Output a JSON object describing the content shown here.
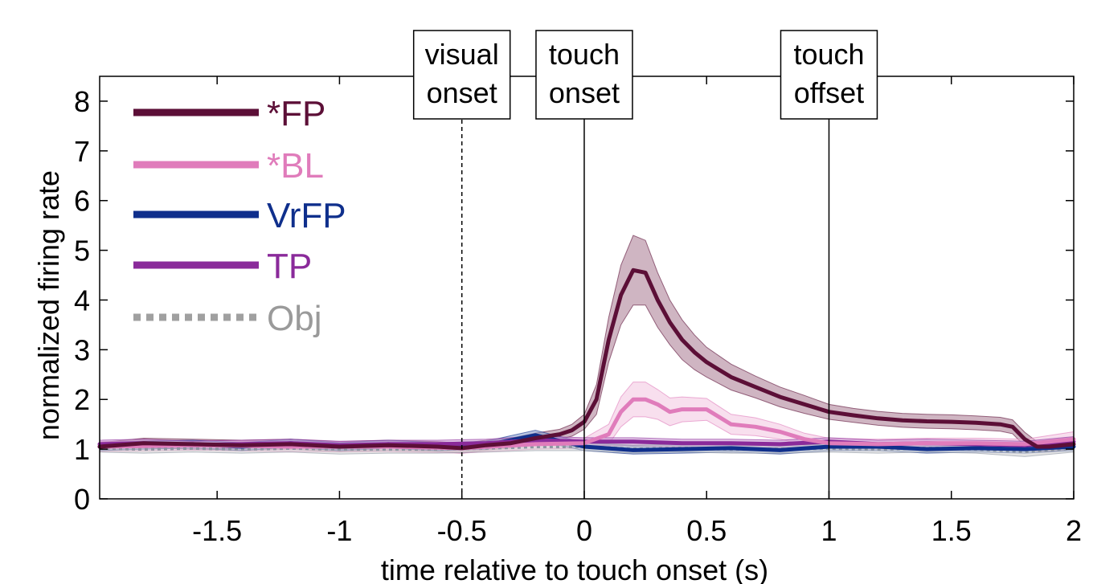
{
  "chart_data": {
    "type": "line",
    "xlabel": "time relative to touch onset (s)",
    "ylabel": "normalized firing rate",
    "xlim": [
      -1.98,
      2
    ],
    "ylim": [
      0,
      8.5
    ],
    "xticks": [
      -1.5,
      -1,
      -0.5,
      0,
      0.5,
      1,
      1.5,
      2
    ],
    "xtick_labels": [
      "-1.5",
      "-1",
      "-0.5",
      "0",
      "0.5",
      "1",
      "1.5",
      "2"
    ],
    "yticks": [
      0,
      1,
      2,
      3,
      4,
      5,
      6,
      7,
      8
    ],
    "ytick_labels": [
      "0",
      "1",
      "2",
      "3",
      "4",
      "5",
      "6",
      "7",
      "8"
    ],
    "grid": false,
    "legend_position": "top-left",
    "event_markers": [
      {
        "x": -0.5,
        "style": "dashed",
        "label_line1": "visual",
        "label_line2": "onset"
      },
      {
        "x": 0,
        "style": "solid",
        "label_line1": "touch",
        "label_line2": "onset"
      },
      {
        "x": 1,
        "style": "solid",
        "label_line1": "touch",
        "label_line2": "offset"
      }
    ],
    "series": [
      {
        "name": "*FP",
        "color": "#5c0f37",
        "band_color": "#a8788f",
        "style": "solid",
        "x": [
          -1.98,
          -1.8,
          -1.6,
          -1.4,
          -1.2,
          -1.0,
          -0.8,
          -0.6,
          -0.5,
          -0.4,
          -0.3,
          -0.2,
          -0.1,
          -0.05,
          0.0,
          0.05,
          0.1,
          0.15,
          0.2,
          0.25,
          0.3,
          0.35,
          0.4,
          0.45,
          0.5,
          0.55,
          0.6,
          0.7,
          0.8,
          0.9,
          1.0,
          1.1,
          1.2,
          1.3,
          1.4,
          1.5,
          1.6,
          1.7,
          1.75,
          1.8,
          1.85,
          1.9,
          2.0
        ],
        "values": [
          1.05,
          1.12,
          1.1,
          1.08,
          1.1,
          1.05,
          1.08,
          1.05,
          1.02,
          1.08,
          1.12,
          1.22,
          1.3,
          1.38,
          1.55,
          2.0,
          3.2,
          4.1,
          4.6,
          4.55,
          4.0,
          3.55,
          3.2,
          2.95,
          2.75,
          2.6,
          2.45,
          2.25,
          2.05,
          1.9,
          1.75,
          1.68,
          1.62,
          1.58,
          1.56,
          1.55,
          1.53,
          1.5,
          1.45,
          1.2,
          1.05,
          1.05,
          1.1
        ],
        "band": [
          0.08,
          0.1,
          0.1,
          0.1,
          0.1,
          0.1,
          0.1,
          0.1,
          0.1,
          0.1,
          0.1,
          0.1,
          0.1,
          0.12,
          0.15,
          0.3,
          0.45,
          0.6,
          0.7,
          0.65,
          0.55,
          0.45,
          0.4,
          0.35,
          0.3,
          0.28,
          0.26,
          0.22,
          0.2,
          0.18,
          0.15,
          0.14,
          0.14,
          0.14,
          0.14,
          0.14,
          0.14,
          0.14,
          0.14,
          0.14,
          0.1,
          0.1,
          0.1
        ]
      },
      {
        "name": "*BL",
        "color": "#e07cbb",
        "band_color": "#f2c4e0",
        "style": "solid",
        "x": [
          -1.98,
          -1.6,
          -1.2,
          -0.8,
          -0.5,
          -0.2,
          0.0,
          0.1,
          0.15,
          0.2,
          0.25,
          0.3,
          0.35,
          0.4,
          0.5,
          0.6,
          0.7,
          0.8,
          0.9,
          1.0,
          1.2,
          1.4,
          1.6,
          1.8,
          2.0
        ],
        "values": [
          1.05,
          1.08,
          1.05,
          1.05,
          1.02,
          1.1,
          1.12,
          1.3,
          1.75,
          2.0,
          2.0,
          1.9,
          1.75,
          1.8,
          1.8,
          1.5,
          1.45,
          1.35,
          1.2,
          1.12,
          1.1,
          1.12,
          1.12,
          1.1,
          1.2
        ],
        "band": [
          0.1,
          0.1,
          0.1,
          0.1,
          0.1,
          0.1,
          0.1,
          0.2,
          0.3,
          0.35,
          0.35,
          0.3,
          0.28,
          0.25,
          0.22,
          0.2,
          0.18,
          0.15,
          0.12,
          0.1,
          0.1,
          0.1,
          0.1,
          0.1,
          0.15
        ]
      },
      {
        "name": "VrFP",
        "color": "#0f2f8c",
        "band_color": "#7f95c9",
        "style": "solid",
        "x": [
          -1.98,
          -1.8,
          -1.6,
          -1.4,
          -1.2,
          -1.0,
          -0.8,
          -0.6,
          -0.4,
          -0.2,
          0.0,
          0.2,
          0.4,
          0.6,
          0.8,
          1.0,
          1.2,
          1.4,
          1.6,
          1.8,
          2.0
        ],
        "values": [
          1.05,
          1.08,
          1.1,
          1.05,
          1.12,
          1.05,
          1.1,
          1.05,
          1.08,
          1.28,
          1.05,
          0.98,
          1.0,
          1.02,
          0.98,
          1.05,
          1.05,
          1.0,
          1.02,
          1.0,
          1.05
        ],
        "band": [
          0.08,
          0.08,
          0.08,
          0.08,
          0.08,
          0.08,
          0.08,
          0.08,
          0.08,
          0.1,
          0.08,
          0.08,
          0.08,
          0.08,
          0.08,
          0.08,
          0.08,
          0.08,
          0.08,
          0.08,
          0.08
        ]
      },
      {
        "name": "TP",
        "color": "#8a2a9a",
        "band_color": "#c895d2",
        "style": "solid",
        "x": [
          -1.98,
          -1.8,
          -1.6,
          -1.4,
          -1.2,
          -1.0,
          -0.8,
          -0.6,
          -0.4,
          -0.2,
          0.0,
          0.2,
          0.4,
          0.6,
          0.8,
          1.0,
          1.2,
          1.4,
          1.6,
          1.8,
          2.0
        ],
        "values": [
          1.1,
          1.12,
          1.08,
          1.1,
          1.12,
          1.08,
          1.1,
          1.1,
          1.12,
          1.18,
          1.15,
          1.15,
          1.12,
          1.12,
          1.1,
          1.15,
          1.1,
          1.12,
          1.1,
          1.08,
          1.15
        ],
        "band": [
          0.08,
          0.08,
          0.08,
          0.08,
          0.08,
          0.08,
          0.08,
          0.08,
          0.08,
          0.08,
          0.08,
          0.08,
          0.08,
          0.08,
          0.08,
          0.08,
          0.08,
          0.08,
          0.08,
          0.08,
          0.1
        ]
      },
      {
        "name": "Obj",
        "color": "#8e96a3",
        "band_color": "#cfcfcf",
        "style": "dotted",
        "x": [
          -1.98,
          -1.8,
          -1.6,
          -1.4,
          -1.2,
          -1.0,
          -0.8,
          -0.6,
          -0.4,
          -0.2,
          0.0,
          0.2,
          0.4,
          0.6,
          0.8,
          1.0,
          1.2,
          1.4,
          1.6,
          1.8,
          2.0
        ],
        "values": [
          1.02,
          1.0,
          1.02,
          1.0,
          1.02,
          1.0,
          1.0,
          1.0,
          1.02,
          1.05,
          1.05,
          1.0,
          1.02,
          1.0,
          1.0,
          1.02,
          1.0,
          1.02,
          1.0,
          0.95,
          1.02
        ],
        "band": [
          0.08,
          0.08,
          0.08,
          0.08,
          0.08,
          0.1,
          0.08,
          0.08,
          0.08,
          0.08,
          0.08,
          0.08,
          0.08,
          0.08,
          0.08,
          0.08,
          0.08,
          0.08,
          0.08,
          0.1,
          0.08
        ]
      }
    ]
  }
}
